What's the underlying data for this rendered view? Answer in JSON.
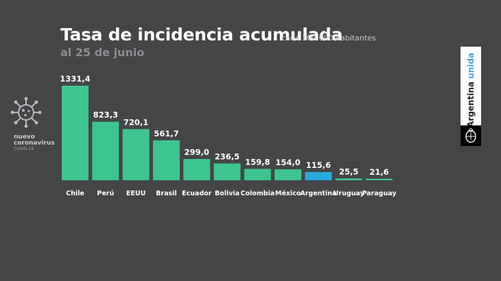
{
  "header": {
    "title": "Tasa de incidencia acumulada",
    "subtitle": "cada 100.000 habitantes",
    "date": "al 25 de junio"
  },
  "badge": {
    "line1": "nuevo",
    "line2": "coronavirus",
    "line3": "COVID-19",
    "icon": "virus-icon"
  },
  "brand": {
    "part1": "Argentina ",
    "part2": "unida",
    "accent_color": "#4aa3df",
    "seal_icon": "coat-of-arms-icon"
  },
  "colors": {
    "bar": "#3ec48f",
    "highlight": "#2aa9e0",
    "label": "#ffffff"
  },
  "chart_data": {
    "type": "bar",
    "title": "Tasa de incidencia acumulada",
    "subtitle": "cada 100.000 habitantes",
    "categories": [
      "Chile",
      "Perú",
      "EEUU",
      "Brasil",
      "Ecuador",
      "Bolivia",
      "Colombia",
      "México",
      "Argentina",
      "Uruguay",
      "Paraguay"
    ],
    "values": [
      1331.4,
      823.3,
      720.1,
      561.7,
      299.0,
      236.5,
      159.8,
      154.0,
      115.6,
      25.5,
      21.6
    ],
    "value_labels": [
      "1331,4",
      "823,3",
      "720,1",
      "561,7",
      "299,0",
      "236,5",
      "159,8",
      "154,0",
      "115,6",
      "25,5",
      "21,6"
    ],
    "highlight_category": "Argentina",
    "xlabel": "",
    "ylabel": "",
    "ylim": [
      0,
      1331.4
    ],
    "grid": false,
    "legend": "none"
  }
}
